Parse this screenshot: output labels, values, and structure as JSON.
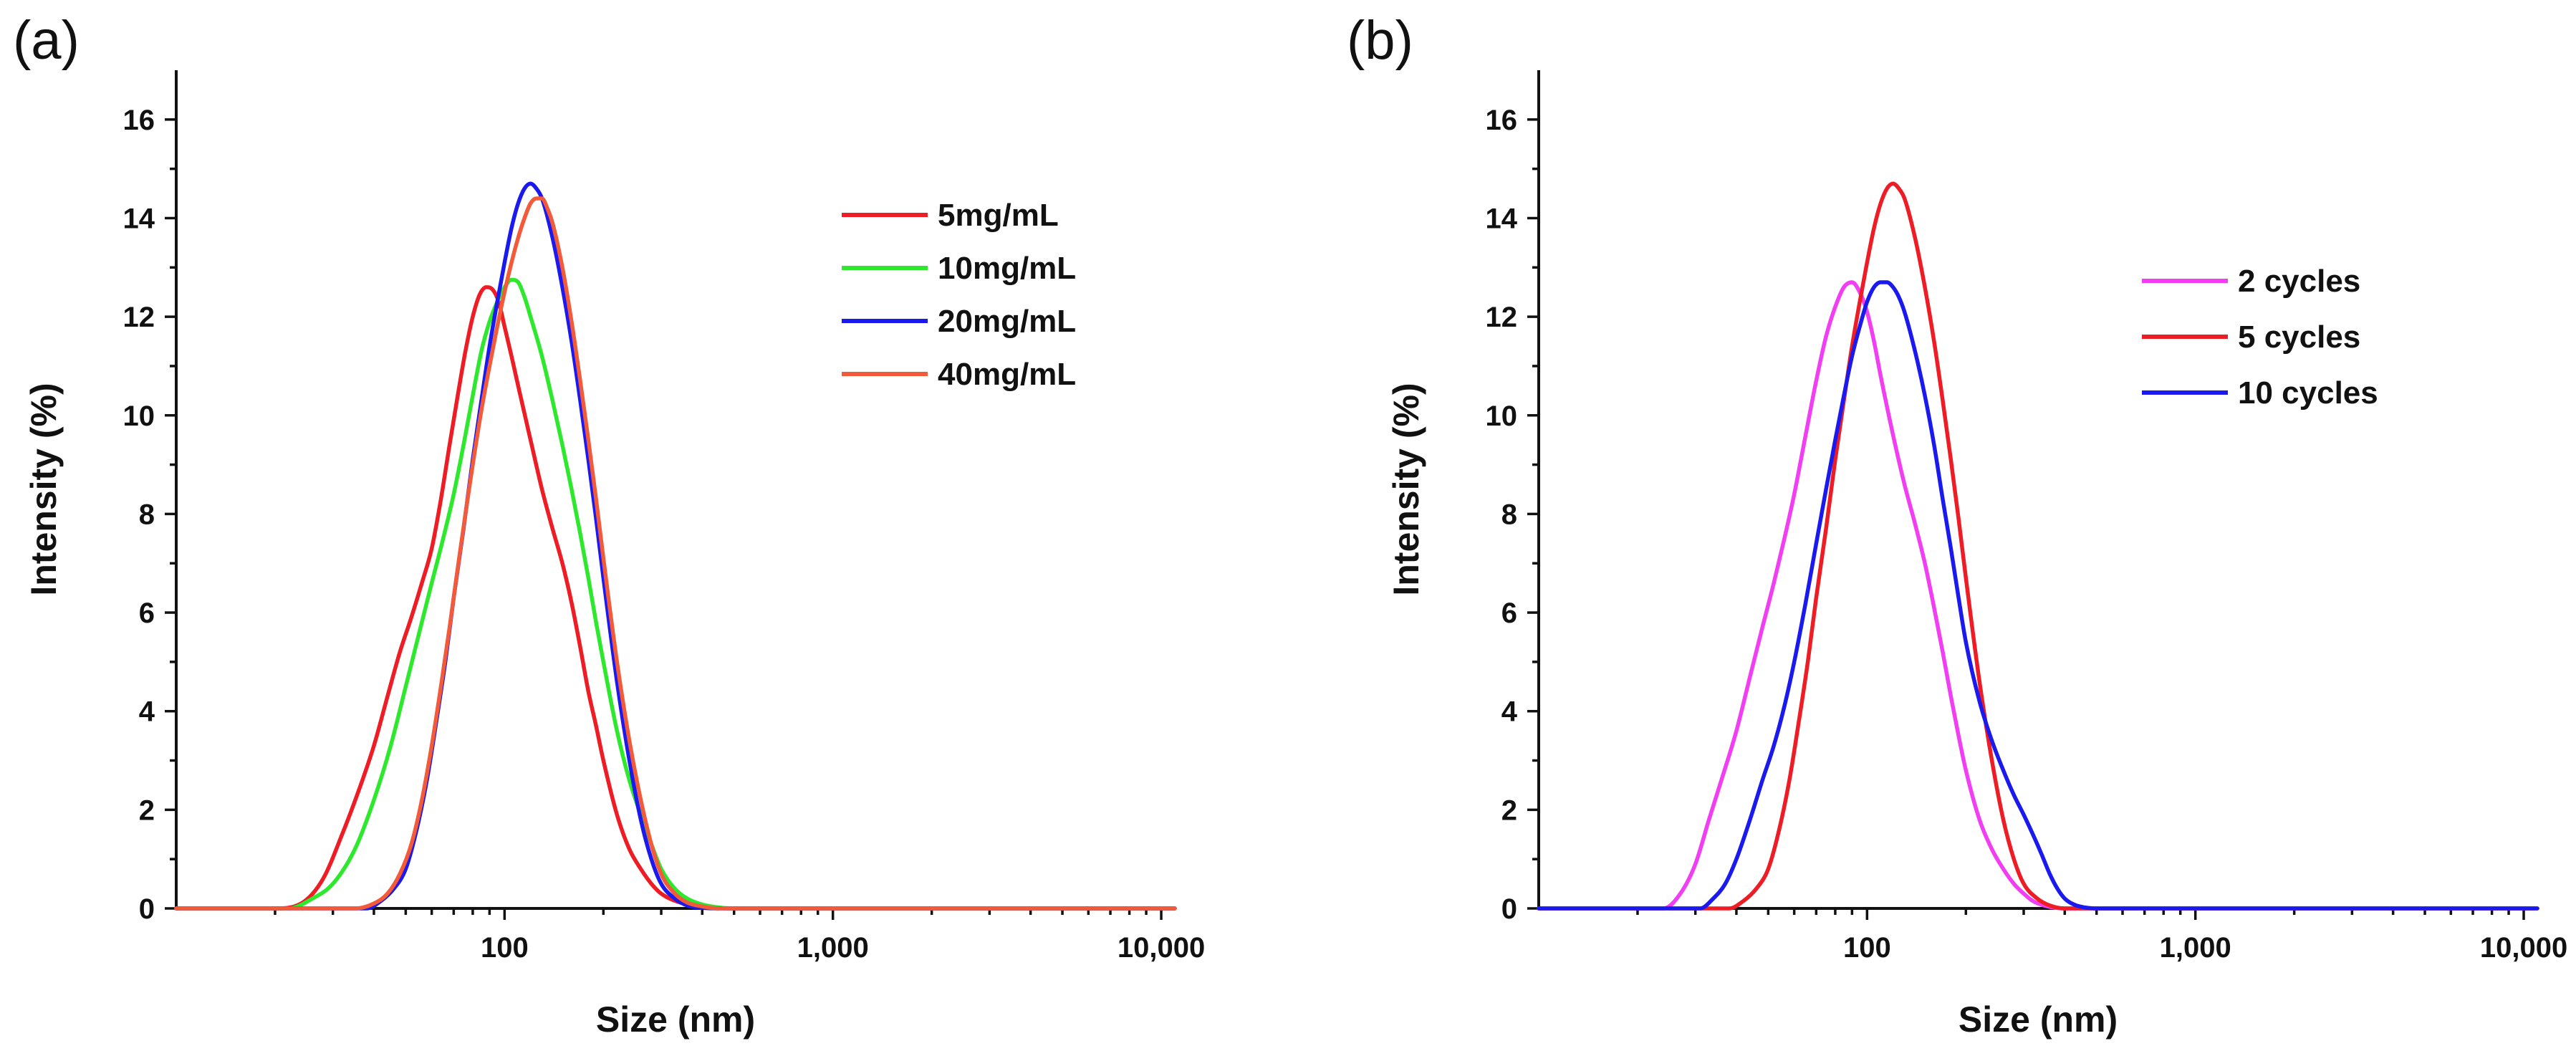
{
  "chart_data": [
    {
      "type": "line",
      "panel_label": "(a)",
      "xlabel": "Size (nm)",
      "ylabel": "Intensity (%)",
      "xscale": "log",
      "xlim": [
        10,
        11000
      ],
      "ylim": [
        0,
        17
      ],
      "grid": false,
      "legend_position": "top-right",
      "x_ticks": [
        100,
        1000,
        10000
      ],
      "x_tick_labels": [
        "100",
        "1,000",
        "10,000"
      ],
      "y_ticks": [
        0,
        2,
        4,
        6,
        8,
        10,
        12,
        14,
        16
      ],
      "y_tick_labels": [
        "0",
        "2",
        "4",
        "6",
        "8",
        "10",
        "12",
        "14",
        "16"
      ],
      "series": [
        {
          "name": "5mg/mL",
          "color": "#ee1c24",
          "x": [
            10,
            20,
            24,
            28,
            32,
            36,
            40,
            44,
            48,
            52,
            56,
            60,
            64,
            68,
            72,
            76,
            80,
            84,
            88,
            92,
            96,
            100,
            105,
            110,
            120,
            130,
            140,
            150,
            160,
            170,
            180,
            190,
            200,
            220,
            240,
            260,
            280,
            300,
            350,
            400,
            500,
            1000,
            11000
          ],
          "values": [
            0,
            0,
            0.1,
            0.6,
            1.5,
            2.4,
            3.3,
            4.3,
            5.2,
            5.9,
            6.6,
            7.3,
            8.3,
            9.4,
            10.4,
            11.3,
            12.0,
            12.45,
            12.6,
            12.55,
            12.3,
            11.8,
            11.2,
            10.6,
            9.5,
            8.5,
            7.7,
            7.0,
            6.2,
            5.3,
            4.4,
            3.7,
            3.0,
            1.9,
            1.2,
            0.8,
            0.5,
            0.3,
            0.1,
            0.03,
            0,
            0,
            0
          ]
        },
        {
          "name": "10mg/mL",
          "color": "#2ee82e",
          "x": [
            10,
            22,
            26,
            30,
            35,
            40,
            45,
            50,
            55,
            60,
            65,
            70,
            75,
            80,
            85,
            90,
            95,
            100,
            105,
            110,
            115,
            120,
            130,
            140,
            150,
            160,
            170,
            180,
            190,
            200,
            220,
            240,
            260,
            280,
            300,
            330,
            360,
            400,
            450,
            500,
            1000,
            11000
          ],
          "values": [
            0,
            0,
            0.2,
            0.5,
            1.2,
            2.2,
            3.3,
            4.5,
            5.6,
            6.6,
            7.5,
            8.4,
            9.4,
            10.4,
            11.3,
            11.9,
            12.3,
            12.6,
            12.75,
            12.7,
            12.4,
            12.0,
            11.2,
            10.3,
            9.4,
            8.5,
            7.6,
            6.7,
            5.8,
            5.0,
            3.6,
            2.6,
            1.9,
            1.3,
            0.8,
            0.4,
            0.2,
            0.08,
            0.02,
            0,
            0,
            0
          ]
        },
        {
          "name": "20mg/mL",
          "color": "#1a1aee",
          "x": [
            10,
            38,
            42,
            46,
            50,
            54,
            58,
            62,
            66,
            70,
            75,
            80,
            85,
            90,
            95,
            100,
            105,
            110,
            115,
            120,
            125,
            130,
            140,
            150,
            160,
            170,
            180,
            190,
            200,
            220,
            240,
            260,
            280,
            300,
            330,
            360,
            400,
            450,
            1000,
            11000
          ],
          "values": [
            0,
            0,
            0.15,
            0.4,
            0.8,
            1.6,
            2.6,
            3.8,
            5.0,
            6.3,
            7.7,
            9.1,
            10.3,
            11.4,
            12.3,
            13.1,
            13.8,
            14.3,
            14.6,
            14.7,
            14.6,
            14.4,
            13.6,
            12.6,
            11.5,
            10.3,
            9.1,
            7.9,
            6.7,
            4.6,
            3.0,
            1.8,
            1.0,
            0.5,
            0.2,
            0.06,
            0.01,
            0,
            0,
            0
          ]
        },
        {
          "name": "40mg/mL",
          "color": "#f25a3a",
          "x": [
            10,
            35,
            40,
            44,
            48,
            52,
            56,
            60,
            64,
            68,
            72,
            76,
            80,
            85,
            90,
            95,
            100,
            105,
            110,
            115,
            120,
            125,
            130,
            135,
            140,
            150,
            160,
            170,
            180,
            190,
            200,
            220,
            240,
            260,
            280,
            300,
            330,
            360,
            400,
            450,
            500,
            1000,
            11000
          ],
          "values": [
            0,
            0,
            0.1,
            0.3,
            0.7,
            1.3,
            2.2,
            3.3,
            4.5,
            5.7,
            6.9,
            8.0,
            9.0,
            10.1,
            11.0,
            11.8,
            12.5,
            13.1,
            13.6,
            14.0,
            14.3,
            14.4,
            14.4,
            14.2,
            13.9,
            13.0,
            11.9,
            10.7,
            9.5,
            8.3,
            7.1,
            5.0,
            3.4,
            2.2,
            1.3,
            0.7,
            0.3,
            0.12,
            0.04,
            0,
            0,
            0,
            0
          ]
        }
      ]
    },
    {
      "type": "line",
      "panel_label": "(b)",
      "xlabel": "Size (nm)",
      "ylabel": "Intensity (%)",
      "xscale": "log",
      "xlim": [
        10,
        11000
      ],
      "ylim": [
        0,
        17
      ],
      "grid": false,
      "legend_position": "right",
      "x_ticks": [
        100,
        1000,
        10000
      ],
      "x_tick_labels": [
        "100",
        "1,000",
        "10,000"
      ],
      "y_ticks": [
        0,
        2,
        4,
        6,
        8,
        10,
        12,
        14,
        16
      ],
      "y_tick_labels": [
        "0",
        "2",
        "4",
        "6",
        "8",
        "10",
        "12",
        "14",
        "16"
      ],
      "series": [
        {
          "name": "2 cycles",
          "color": "#f23ef2",
          "x": [
            10,
            24,
            27,
            30,
            33,
            36,
            40,
            44,
            48,
            52,
            56,
            60,
            65,
            70,
            75,
            80,
            85,
            90,
            95,
            100,
            105,
            110,
            120,
            130,
            140,
            150,
            160,
            170,
            180,
            190,
            200,
            220,
            240,
            260,
            280,
            300,
            320,
            350,
            400,
            1000,
            11000
          ],
          "values": [
            0,
            0,
            0.3,
            0.9,
            1.8,
            2.6,
            3.6,
            4.7,
            5.7,
            6.6,
            7.5,
            8.4,
            9.6,
            10.7,
            11.6,
            12.2,
            12.6,
            12.7,
            12.5,
            12.1,
            11.5,
            10.8,
            9.6,
            8.6,
            7.8,
            7.0,
            6.1,
            5.2,
            4.3,
            3.5,
            2.8,
            1.8,
            1.2,
            0.8,
            0.5,
            0.3,
            0.15,
            0.05,
            0,
            0,
            0
          ]
        },
        {
          "name": "5 cycles",
          "color": "#ee1c24",
          "x": [
            10,
            38,
            42,
            46,
            50,
            54,
            58,
            62,
            66,
            70,
            75,
            80,
            85,
            90,
            95,
            100,
            105,
            110,
            115,
            120,
            125,
            130,
            140,
            150,
            160,
            170,
            180,
            190,
            200,
            220,
            240,
            260,
            280,
            300,
            330,
            360,
            400,
            1000,
            11000
          ],
          "values": [
            0,
            0,
            0.15,
            0.4,
            0.8,
            1.6,
            2.6,
            3.8,
            5.0,
            6.3,
            7.7,
            9.1,
            10.3,
            11.4,
            12.3,
            13.1,
            13.8,
            14.3,
            14.6,
            14.7,
            14.6,
            14.4,
            13.6,
            12.6,
            11.5,
            10.3,
            9.1,
            7.9,
            6.7,
            4.6,
            3.0,
            1.8,
            1.0,
            0.5,
            0.2,
            0.06,
            0,
            0,
            0
          ]
        },
        {
          "name": "10 cycles",
          "color": "#1a1aee",
          "x": [
            10,
            31,
            34,
            37,
            40,
            44,
            48,
            52,
            56,
            60,
            65,
            70,
            75,
            80,
            85,
            90,
            95,
            100,
            105,
            110,
            115,
            120,
            125,
            130,
            140,
            150,
            160,
            170,
            180,
            190,
            200,
            220,
            240,
            260,
            280,
            300,
            320,
            340,
            360,
            380,
            400,
            430,
            460,
            500,
            1000,
            11000
          ],
          "values": [
            0,
            0,
            0.2,
            0.5,
            1.0,
            1.8,
            2.6,
            3.3,
            4.1,
            5.0,
            6.2,
            7.4,
            8.5,
            9.5,
            10.4,
            11.2,
            11.8,
            12.3,
            12.6,
            12.7,
            12.7,
            12.6,
            12.4,
            12.1,
            11.3,
            10.4,
            9.4,
            8.3,
            7.3,
            6.3,
            5.4,
            4.2,
            3.4,
            2.8,
            2.3,
            1.9,
            1.5,
            1.1,
            0.7,
            0.4,
            0.2,
            0.07,
            0.02,
            0,
            0,
            0
          ]
        }
      ]
    }
  ]
}
